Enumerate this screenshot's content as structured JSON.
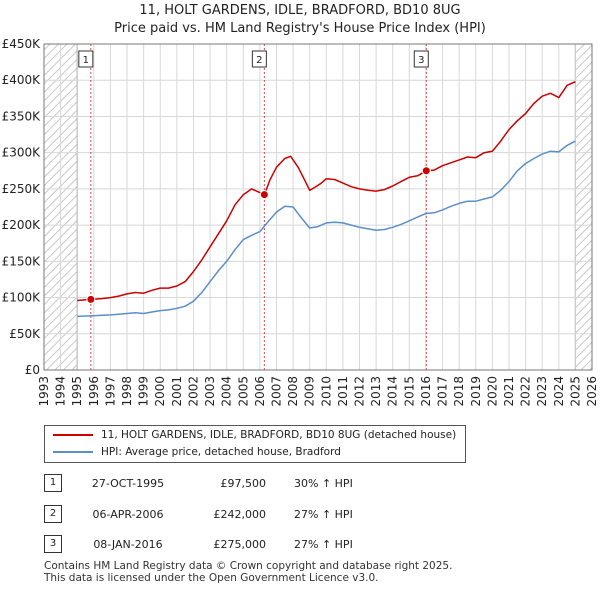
{
  "chart_data": {
    "type": "line",
    "title": "11, HOLT GARDENS, IDLE, BRADFORD, BD10 8UG",
    "subtitle": "Price paid vs. HM Land Registry's House Price Index (HPI)",
    "xlabel": "",
    "ylabel": "",
    "xlim": [
      1993,
      2026
    ],
    "ylim": [
      0,
      450000
    ],
    "x_ticks": [
      "1993",
      "1994",
      "1995",
      "1996",
      "1997",
      "1998",
      "1999",
      "2000",
      "2001",
      "2002",
      "2003",
      "2004",
      "2005",
      "2006",
      "2007",
      "2008",
      "2009",
      "2010",
      "2011",
      "2012",
      "2013",
      "2014",
      "2015",
      "2016",
      "2017",
      "2018",
      "2019",
      "2020",
      "2021",
      "2022",
      "2023",
      "2024",
      "2025",
      "2026"
    ],
    "y_ticks": [
      {
        "value": 0,
        "label": "£0"
      },
      {
        "value": 50000,
        "label": "£50K"
      },
      {
        "value": 100000,
        "label": "£100K"
      },
      {
        "value": 150000,
        "label": "£150K"
      },
      {
        "value": 200000,
        "label": "£200K"
      },
      {
        "value": 250000,
        "label": "£250K"
      },
      {
        "value": 300000,
        "label": "£300K"
      },
      {
        "value": 350000,
        "label": "£350K"
      },
      {
        "value": 400000,
        "label": "£400K"
      },
      {
        "value": 450000,
        "label": "£450K"
      }
    ],
    "hatched_ranges": [
      [
        1993,
        1995.0
      ],
      [
        2025.0,
        2026
      ]
    ],
    "series": [
      {
        "name": "11, HOLT GARDENS, IDLE, BRADFORD, BD10 8UG (detached house)",
        "color": "#cc0000",
        "x": [
          1995.0,
          1995.82,
          1996.5,
          1997.0,
          1997.5,
          1998.0,
          1998.5,
          1999.0,
          1999.5,
          2000.0,
          2000.5,
          2001.0,
          2001.5,
          2002.0,
          2002.5,
          2003.0,
          2003.5,
          2004.0,
          2004.5,
          2005.0,
          2005.5,
          2006.27,
          2006.6,
          2007.0,
          2007.5,
          2007.85,
          2008.3,
          2008.7,
          2009.0,
          2009.3,
          2009.7,
          2010.0,
          2010.5,
          2011.0,
          2011.5,
          2012.0,
          2012.5,
          2013.0,
          2013.5,
          2014.0,
          2014.5,
          2015.0,
          2015.5,
          2016.02,
          2016.5,
          2017.0,
          2017.5,
          2018.0,
          2018.5,
          2019.0,
          2019.5,
          2020.0,
          2020.5,
          2021.0,
          2021.5,
          2022.0,
          2022.5,
          2023.0,
          2023.5,
          2024.0,
          2024.5,
          2025.0
        ],
        "values": [
          96000,
          97500,
          98500,
          100000,
          102000,
          105000,
          107000,
          106000,
          110000,
          113000,
          113000,
          116000,
          122000,
          136000,
          152000,
          170000,
          188000,
          206000,
          228000,
          242000,
          250000,
          242000,
          262000,
          280000,
          292000,
          295000,
          280000,
          262000,
          248000,
          252000,
          258000,
          264000,
          263000,
          258000,
          253000,
          250000,
          248000,
          247000,
          249000,
          254000,
          260000,
          266000,
          268000,
          275000,
          276000,
          282000,
          286000,
          290000,
          294000,
          293000,
          300000,
          302000,
          316000,
          332000,
          344000,
          354000,
          368000,
          378000,
          382000,
          376000,
          393000,
          398000
        ]
      },
      {
        "name": "HPI: Average price, detached house, Bradford",
        "color": "#5b8fc9",
        "x": [
          1995.0,
          1995.5,
          1996.0,
          1996.5,
          1997.0,
          1997.5,
          1998.0,
          1998.5,
          1999.0,
          1999.5,
          2000.0,
          2000.5,
          2001.0,
          2001.5,
          2002.0,
          2002.5,
          2003.0,
          2003.5,
          2004.0,
          2004.5,
          2005.0,
          2005.5,
          2006.0,
          2006.5,
          2007.0,
          2007.5,
          2008.0,
          2008.5,
          2009.0,
          2009.5,
          2010.0,
          2010.5,
          2011.0,
          2011.5,
          2012.0,
          2012.5,
          2013.0,
          2013.5,
          2014.0,
          2014.5,
          2015.0,
          2015.5,
          2016.0,
          2016.5,
          2017.0,
          2017.5,
          2018.0,
          2018.5,
          2019.0,
          2019.5,
          2020.0,
          2020.5,
          2021.0,
          2021.5,
          2022.0,
          2022.5,
          2023.0,
          2023.5,
          2024.0,
          2024.5,
          2025.0
        ],
        "values": [
          74000,
          74500,
          75000,
          75500,
          76000,
          77000,
          78000,
          79000,
          78000,
          80000,
          82000,
          83000,
          85000,
          88000,
          95000,
          107000,
          122000,
          137000,
          150000,
          166000,
          180000,
          186000,
          191000,
          205000,
          218000,
          226000,
          225000,
          210000,
          196000,
          198000,
          203000,
          204000,
          203000,
          200000,
          197000,
          195000,
          193000,
          194000,
          197000,
          201000,
          206000,
          211000,
          216000,
          217000,
          221000,
          226000,
          230000,
          233000,
          233000,
          236000,
          239000,
          248000,
          260000,
          275000,
          285000,
          292000,
          298000,
          302000,
          301000,
          310000,
          316000
        ]
      }
    ],
    "annotations": [
      {
        "label": "1",
        "x": 1995.82,
        "value": 97500
      },
      {
        "label": "2",
        "x": 2006.27,
        "value": 242000
      },
      {
        "label": "3",
        "x": 2016.02,
        "value": 275000
      }
    ]
  },
  "legend": {
    "items": [
      {
        "label": "11, HOLT GARDENS, IDLE, BRADFORD, BD10 8UG (detached house)",
        "color": "#cc0000"
      },
      {
        "label": "HPI: Average price, detached house, Bradford",
        "color": "#5b8fc9"
      }
    ]
  },
  "transactions": [
    {
      "num": "1",
      "date": "27-OCT-1995",
      "price": "£97,500",
      "hpi": "30% ↑ HPI"
    },
    {
      "num": "2",
      "date": "06-APR-2006",
      "price": "£242,000",
      "hpi": "27% ↑ HPI"
    },
    {
      "num": "3",
      "date": "08-JAN-2016",
      "price": "£275,000",
      "hpi": "27% ↑ HPI"
    }
  ],
  "footer": {
    "line1": "Contains HM Land Registry data © Crown copyright and database right 2025.",
    "line2": "This data is licensed under the Open Government Licence v3.0."
  }
}
